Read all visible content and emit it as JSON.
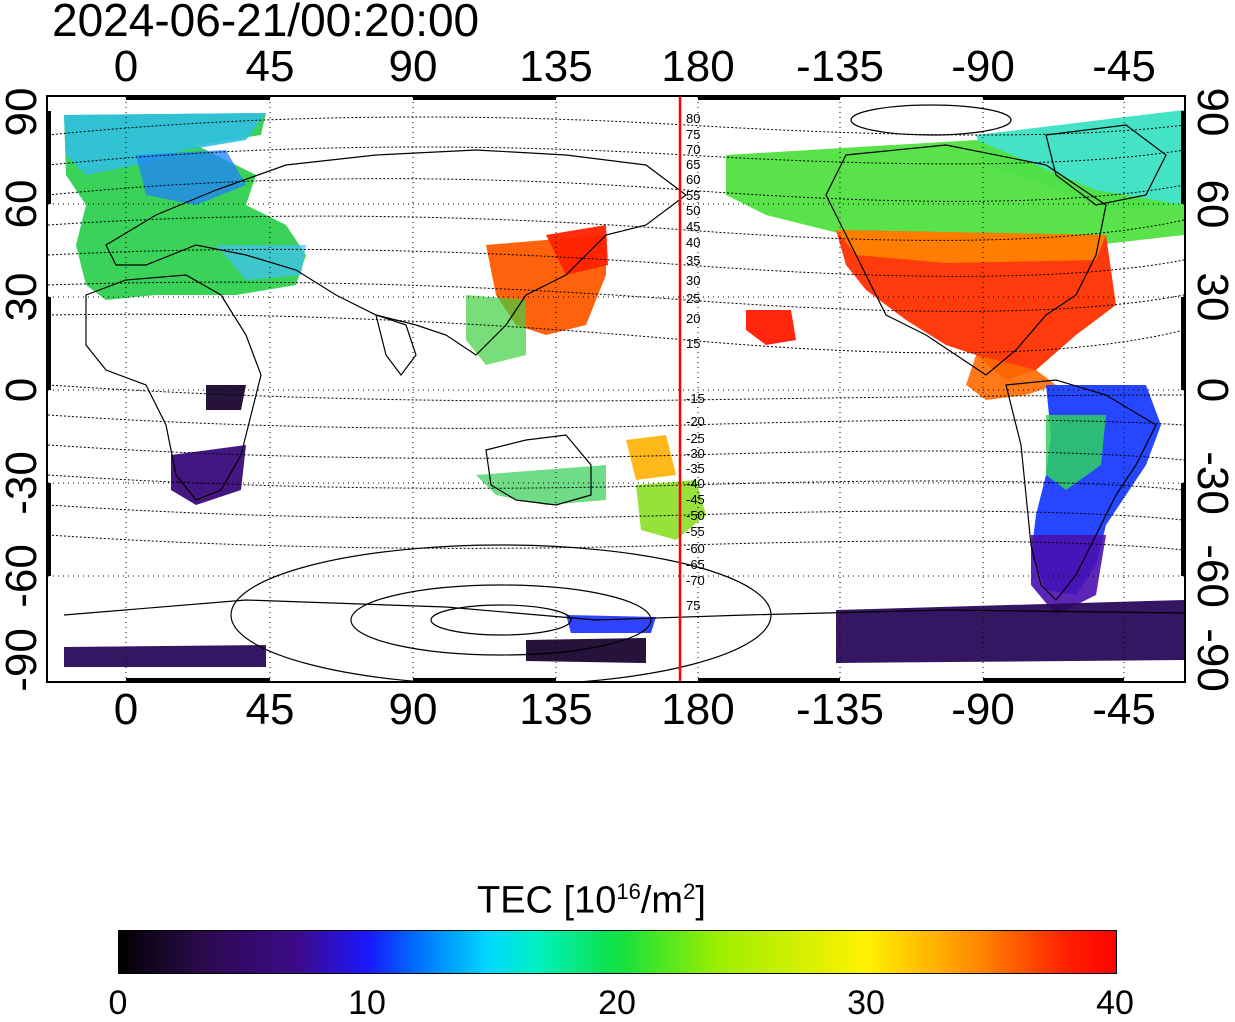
{
  "title": "2024-06-21/00:20:00",
  "top_axis_labels": [
    "0",
    "45",
    "90",
    "135",
    "180",
    "-135",
    "-90",
    "-45"
  ],
  "bottom_axis_labels": [
    "0",
    "45",
    "90",
    "135",
    "180",
    "-135",
    "-90",
    "-45"
  ],
  "left_axis_labels": [
    "90",
    "60",
    "30",
    "0",
    "-30",
    "-60",
    "-90"
  ],
  "right_axis_labels": [
    "90",
    "60",
    "30",
    "0",
    "-30",
    "-60",
    "-90"
  ],
  "contour_labels_north": [
    "80",
    "75",
    "70",
    "65",
    "60",
    "55",
    "50",
    "45",
    "40",
    "35",
    "30",
    "25",
    "20",
    "15"
  ],
  "contour_labels_south": [
    "-15",
    "-20",
    "-25",
    "-30",
    "-35",
    "-40",
    "-45",
    "-50",
    "-55",
    "-60",
    "-65",
    "-70",
    "75"
  ],
  "meridian_line_color": "#ff0000",
  "colorbar": {
    "title": "TEC  [10",
    "title_exp": "16",
    "title_unit": "/m",
    "title_unit_exp": "2",
    "title_end": "]",
    "ticks": [
      "0",
      "10",
      "20",
      "30",
      "40"
    ],
    "min": 0,
    "max": 40
  },
  "tec_regions": [
    {
      "name": "north-america",
      "color": "#ff2a00"
    },
    {
      "name": "east-asia",
      "color": "#ff5a00"
    },
    {
      "name": "europe",
      "color": "#30d050"
    },
    {
      "name": "south-america",
      "color": "#1a3cff"
    },
    {
      "name": "antarctica",
      "color": "#2a0a5a"
    },
    {
      "name": "southern-africa",
      "color": "#3a0a7a"
    }
  ]
}
